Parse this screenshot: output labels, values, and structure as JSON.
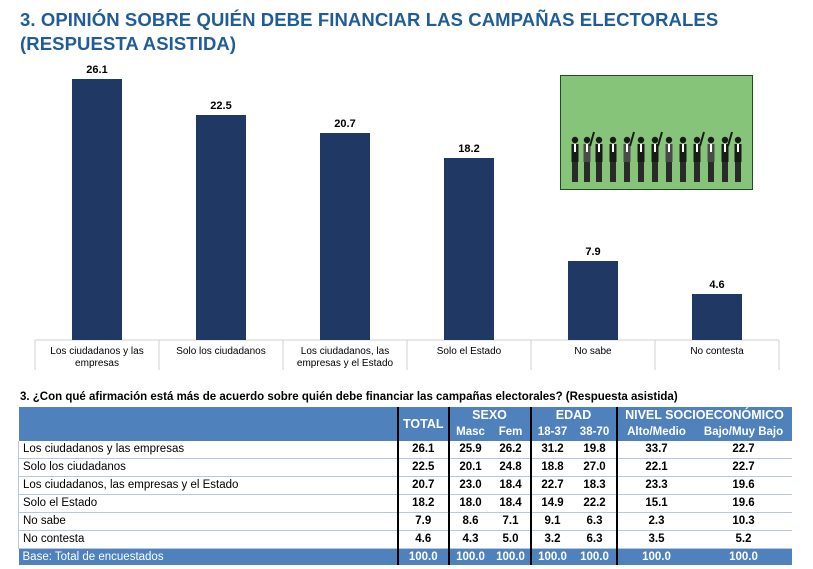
{
  "title": "3. OPINIÓN SOBRE QUIÉN DEBE FINANCIAR LAS CAMPAÑAS ELECTORALES",
  "subtitle": "(RESPUESTA ASISTIDA)",
  "chart_data": {
    "type": "bar",
    "categories": [
      [
        "Los ciudadanos y las",
        "empresas"
      ],
      [
        "Solo los ciudadanos"
      ],
      [
        "Los ciudadanos, las",
        "empresas y el Estado"
      ],
      [
        "Solo el Estado"
      ],
      [
        "No sabe"
      ],
      [
        "No contesta"
      ]
    ],
    "values": [
      26.1,
      22.5,
      20.7,
      18.2,
      7.9,
      4.6
    ],
    "value_labels": [
      "26.1",
      "22.5",
      "20.7",
      "18.2",
      "7.9",
      "4.6"
    ],
    "bar_color": "#1F3864",
    "ylim": [
      0,
      30
    ],
    "grid": false,
    "legend": "none"
  },
  "illustration": {
    "icon": "business-people-group-icon",
    "background": "#86C47A"
  },
  "table": {
    "question": "3. ¿Con qué afirmación está más de acuerdo sobre quién debe financiar las campañas electorales? (Respuesta asistida)",
    "header_group": {
      "total": "TOTAL",
      "sexo": "SEXO",
      "edad": "EDAD",
      "nse": "NIVEL SOCIOECONÓMICO"
    },
    "header_sub": {
      "masc": "Masc",
      "fem": "Fem",
      "e1": "18-37",
      "e2": "38-70",
      "alto": "Alto/Medio",
      "bajo": "Bajo/Muy Bajo"
    },
    "rows": [
      {
        "label": "Los ciudadanos y las empresas",
        "total": "26.1",
        "masc": "25.9",
        "fem": "26.2",
        "e1": "31.2",
        "e2": "19.8",
        "alto": "33.7",
        "bajo": "22.7"
      },
      {
        "label": "Solo los ciudadanos",
        "total": "22.5",
        "masc": "20.1",
        "fem": "24.8",
        "e1": "18.8",
        "e2": "27.0",
        "alto": "22.1",
        "bajo": "22.7"
      },
      {
        "label": "Los ciudadanos, las empresas y el Estado",
        "total": "20.7",
        "masc": "23.0",
        "fem": "18.4",
        "e1": "22.7",
        "e2": "18.3",
        "alto": "23.3",
        "bajo": "19.6"
      },
      {
        "label": "Solo el Estado",
        "total": "18.2",
        "masc": "18.0",
        "fem": "18.4",
        "e1": "14.9",
        "e2": "22.2",
        "alto": "15.1",
        "bajo": "19.6"
      },
      {
        "label": "No sabe",
        "total": "7.9",
        "masc": "8.6",
        "fem": "7.1",
        "e1": "9.1",
        "e2": "6.3",
        "alto": "2.3",
        "bajo": "10.3"
      },
      {
        "label": "No contesta",
        "total": "4.6",
        "masc": "4.3",
        "fem": "5.0",
        "e1": "3.2",
        "e2": "6.3",
        "alto": "3.5",
        "bajo": "5.2"
      }
    ],
    "base": {
      "label": "Base: Total de encuestados",
      "total": "100.0",
      "masc": "100.0",
      "fem": "100.0",
      "e1": "100.0",
      "e2": "100.0",
      "alto": "100.0",
      "bajo": "100.0"
    }
  }
}
